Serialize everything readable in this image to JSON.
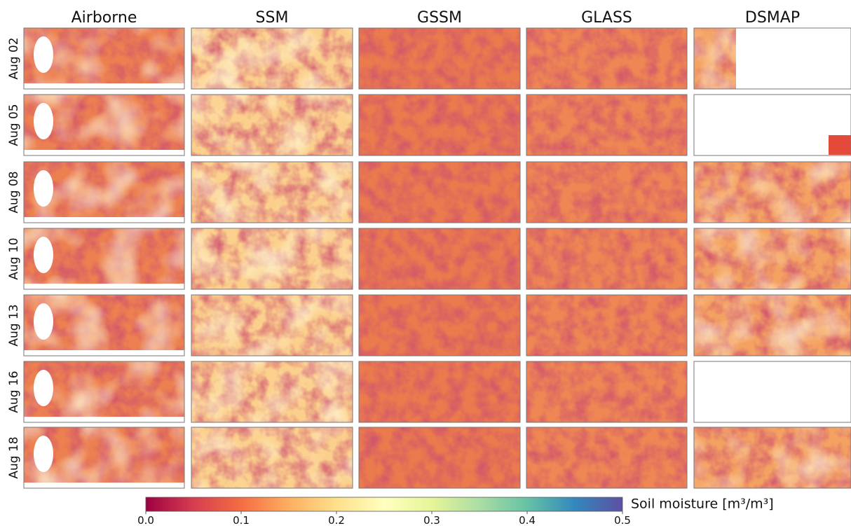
{
  "figure": {
    "columns": [
      "Airborne",
      "SSM",
      "GSSM",
      "GLASS",
      "DSMAP"
    ],
    "rows": [
      "Aug 02",
      "Aug 05",
      "Aug 08",
      "Aug 10",
      "Aug 13",
      "Aug 16",
      "Aug 18"
    ],
    "colorbar": {
      "label": "Soil moisture [m³/m³]",
      "lim": [
        0,
        0.5
      ],
      "ticks": [
        {
          "value": 0,
          "label": "0.0"
        },
        0.1,
        0.2,
        0.3,
        0.4,
        0.5
      ]
    }
  }
}
